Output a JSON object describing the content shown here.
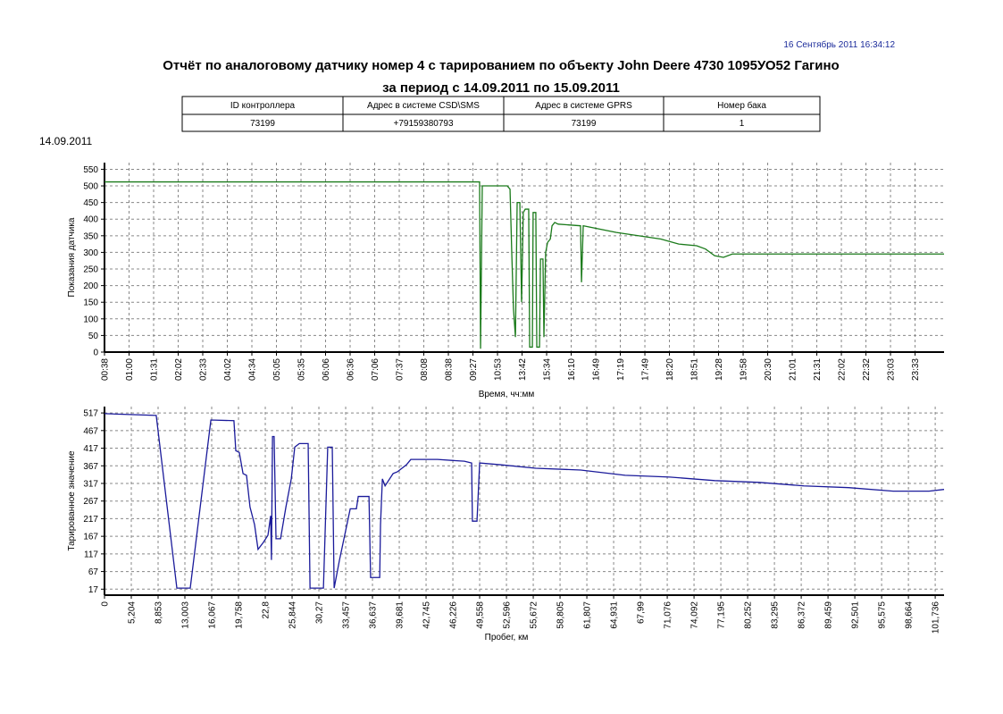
{
  "header": {
    "timestamp": "16 Сентябрь 2011  16:34:12",
    "title": "Отчёт по аналоговому датчику номер 4 с тарированием по объекту John Deere 4730 1095УО52 Гагино",
    "subtitle": "за период с 14.09.2011 по 15.09.2011",
    "date": "14.09.2011"
  },
  "table": {
    "columns": [
      "ID контроллера",
      "Адрес  в системе CSD\\SMS",
      "Адрес  в системе GPRS",
      "Номер бака"
    ],
    "rows": [
      [
        "73199",
        "+79159380793",
        "73199",
        "1"
      ]
    ]
  },
  "chart_data": [
    {
      "type": "line",
      "x_label": "Время, чч:мм",
      "y_label": "Показания датчика",
      "grid": true,
      "ylim": [
        0,
        570
      ],
      "yticks": [
        0,
        50,
        100,
        150,
        200,
        250,
        300,
        350,
        400,
        450,
        500,
        550
      ],
      "xlim": [
        0,
        34.18
      ],
      "xticks": [
        {
          "value": 0,
          "label": "00:38"
        },
        {
          "value": 1,
          "label": "01:00"
        },
        {
          "value": 2,
          "label": "01:31"
        },
        {
          "value": 3,
          "label": "02:02"
        },
        {
          "value": 4,
          "label": "02:33"
        },
        {
          "value": 5,
          "label": "04:02"
        },
        {
          "value": 6,
          "label": "04:34"
        },
        {
          "value": 7,
          "label": "05:05"
        },
        {
          "value": 8,
          "label": "05:35"
        },
        {
          "value": 9,
          "label": "06:06"
        },
        {
          "value": 10,
          "label": "06:36"
        },
        {
          "value": 11,
          "label": "07:06"
        },
        {
          "value": 12,
          "label": "07:37"
        },
        {
          "value": 13,
          "label": "08:08"
        },
        {
          "value": 14,
          "label": "08:38"
        },
        {
          "value": 15,
          "label": "09:27"
        },
        {
          "value": 16,
          "label": "10:53"
        },
        {
          "value": 17,
          "label": "13:42"
        },
        {
          "value": 18,
          "label": "15:34"
        },
        {
          "value": 19,
          "label": "16:10"
        },
        {
          "value": 20,
          "label": "16:49"
        },
        {
          "value": 21,
          "label": "17:19"
        },
        {
          "value": 22,
          "label": "17:49"
        },
        {
          "value": 23,
          "label": "18:20"
        },
        {
          "value": 24,
          "label": "18:51"
        },
        {
          "value": 25,
          "label": "19:28"
        },
        {
          "value": 26,
          "label": "19:58"
        },
        {
          "value": 27,
          "label": "20:30"
        },
        {
          "value": 28,
          "label": "21:01"
        },
        {
          "value": 29,
          "label": "21:31"
        },
        {
          "value": 30,
          "label": "22:02"
        },
        {
          "value": 31,
          "label": "22:32"
        },
        {
          "value": 32,
          "label": "23:03"
        },
        {
          "value": 33,
          "label": "23:33"
        }
      ],
      "series": [
        {
          "color": "#1a7a1a",
          "x": [
            0,
            15.27,
            15.31,
            15.38,
            16.4,
            16.51,
            16.58,
            16.65,
            16.73,
            16.8,
            16.91,
            16.98,
            17.05,
            17.13,
            17.27,
            17.31,
            17.42,
            17.45,
            17.56,
            17.6,
            17.71,
            17.75,
            17.85,
            17.89,
            17.96,
            18.04,
            18.15,
            18.22,
            18.33,
            18.47,
            19.38,
            19.42,
            19.49,
            20.84,
            22.65,
            23.38,
            24.11,
            24.47,
            24.84,
            25.2,
            25.56,
            34.18
          ],
          "values": [
            512,
            512,
            10,
            500,
            500,
            490,
            300,
            130,
            45,
            450,
            450,
            150,
            420,
            430,
            430,
            15,
            15,
            420,
            420,
            15,
            15,
            280,
            280,
            45,
            300,
            330,
            340,
            380,
            390,
            385,
            380,
            210,
            380,
            360,
            340,
            325,
            320,
            310,
            290,
            285,
            295,
            295
          ]
        }
      ]
    },
    {
      "type": "line",
      "x_label": "Пробег, км",
      "y_label": "Тарированное значение",
      "grid": true,
      "ylim": [
        0,
        535
      ],
      "yticks": [
        17,
        67,
        117,
        167,
        217,
        267,
        317,
        367,
        417,
        467,
        517
      ],
      "xlim": [
        0,
        31.33
      ],
      "xticks": [
        0,
        {
          "value": 1,
          "label": "5,204"
        },
        {
          "value": 2,
          "label": "8,853"
        },
        {
          "value": 3,
          "label": "13,003"
        },
        {
          "value": 4,
          "label": "16,067"
        },
        {
          "value": 5,
          "label": "19,758"
        },
        {
          "value": 6,
          "label": "22,8"
        },
        {
          "value": 7,
          "label": "25,844"
        },
        {
          "value": 8,
          "label": "30,27"
        },
        {
          "value": 9,
          "label": "33,457"
        },
        {
          "value": 10,
          "label": "36,637"
        },
        {
          "value": 11,
          "label": "39,681"
        },
        {
          "value": 12,
          "label": "42,745"
        },
        {
          "value": 13,
          "label": "46,226"
        },
        {
          "value": 14,
          "label": "49,558"
        },
        {
          "value": 15,
          "label": "52,596"
        },
        {
          "value": 16,
          "label": "55,672"
        },
        {
          "value": 17,
          "label": "58,805"
        },
        {
          "value": 18,
          "label": "61,807"
        },
        {
          "value": 19,
          "label": "64,931"
        },
        {
          "value": 20,
          "label": "67,99"
        },
        {
          "value": 21,
          "label": "71,076"
        },
        {
          "value": 22,
          "label": "74,092"
        },
        {
          "value": 23,
          "label": "77,195"
        },
        {
          "value": 24,
          "label": "80,252"
        },
        {
          "value": 25,
          "label": "83,295"
        },
        {
          "value": 26,
          "label": "86,372"
        },
        {
          "value": 27,
          "label": "89,459"
        },
        {
          "value": 28,
          "label": "92,501"
        },
        {
          "value": 29,
          "label": "95,575"
        },
        {
          "value": 30,
          "label": "98,664"
        },
        {
          "value": 31,
          "label": "101,736"
        }
      ],
      "series": [
        {
          "color": "#1a1a9a",
          "x": [
            0,
            1.93,
            2.7,
            3.2,
            3.97,
            4.83,
            4.9,
            5.03,
            5.17,
            5.3,
            5.43,
            5.6,
            5.73,
            5.93,
            6.1,
            6.2,
            6.23,
            6.27,
            6.33,
            6.4,
            6.57,
            6.77,
            6.97,
            7.1,
            7.27,
            7.6,
            7.67,
            8.17,
            8.33,
            8.5,
            8.57,
            8.77,
            9.17,
            9.4,
            9.47,
            9.87,
            9.93,
            10.27,
            10.3,
            10.37,
            10.47,
            10.77,
            10.93,
            11.27,
            11.43,
            12.43,
            13.43,
            13.7,
            13.73,
            13.9,
            14.0,
            14.77,
            16.1,
            17.77,
            19.43,
            21.1,
            22.77,
            24.43,
            26.1,
            27.77,
            29.43,
            30.77,
            31.33
          ],
          "values": [
            515,
            510,
            20,
            20,
            497,
            495,
            410,
            405,
            345,
            340,
            250,
            200,
            130,
            150,
            170,
            225,
            100,
            450,
            450,
            160,
            160,
            250,
            330,
            420,
            430,
            430,
            20,
            20,
            420,
            420,
            20,
            100,
            245,
            245,
            280,
            280,
            50,
            50,
            200,
            330,
            310,
            345,
            350,
            370,
            385,
            385,
            380,
            375,
            210,
            210,
            375,
            370,
            360,
            355,
            340,
            335,
            325,
            320,
            310,
            305,
            295,
            295,
            300
          ]
        }
      ]
    }
  ]
}
